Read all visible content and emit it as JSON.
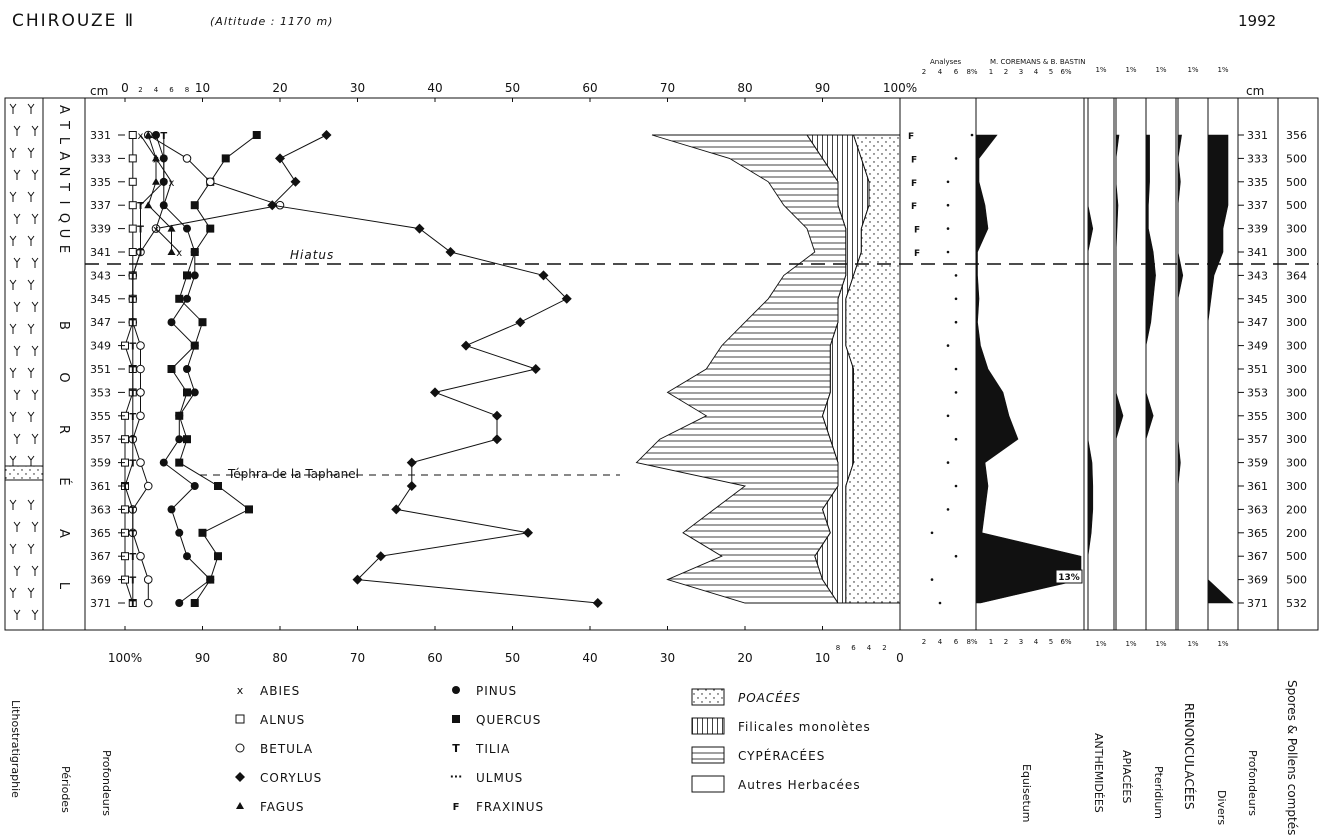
{
  "header": {
    "site": "CHIROUZE Ⅱ",
    "altitude": "(Altitude : 1170 m)",
    "year": "1992",
    "analyses_label": "Analyses",
    "analysts": "M. COREMANS & B. BASTIN"
  },
  "depth_unit": "cm",
  "hiatus_label": "Hiatus",
  "tephra_label": "Téphra de la Taphanel",
  "periods": [
    {
      "name": "ATLANTIQUE",
      "letters": [
        "A",
        "T",
        "L",
        "A",
        "N",
        "T",
        "I",
        "Q",
        "U",
        "E"
      ]
    },
    {
      "name": "BORÉAL",
      "letters": [
        "B",
        "O",
        "R",
        "É",
        "A",
        "L"
      ]
    }
  ],
  "top_axis_ticks": [
    "0",
    "10",
    "20",
    "30",
    "40",
    "50",
    "60",
    "70",
    "80",
    "90",
    "100%"
  ],
  "top_axis_small_ticks": [
    "2",
    "4",
    "6",
    "8"
  ],
  "bottom_axis_ticks": [
    "100%",
    "90",
    "80",
    "70",
    "60",
    "50",
    "40",
    "30",
    "20",
    "10",
    "0"
  ],
  "bottom_axis_small_ticks": [
    "8",
    "6",
    "4",
    "2"
  ],
  "ulmus_axis_ticks": [
    "2",
    "4",
    "6",
    "8%"
  ],
  "equisetum_axis_ticks": [
    "1",
    "2",
    "3",
    "4",
    "5",
    "6%"
  ],
  "one_percent": "1%",
  "equisetum_max_label": "13%",
  "legend": {
    "trees": [
      {
        "symbol": "x",
        "name": "ABIES"
      },
      {
        "symbol": "□",
        "name": "ALNUS"
      },
      {
        "symbol": "○",
        "name": "BETULA"
      },
      {
        "symbol": "◆",
        "name": "CORYLUS"
      },
      {
        "symbol": "▲",
        "name": "FAGUS"
      },
      {
        "symbol": "●",
        "name": "PINUS"
      },
      {
        "symbol": "■",
        "name": "QUERCUS"
      },
      {
        "symbol": "T",
        "name": "TILIA"
      },
      {
        "symbol": "···",
        "name": "ULMUS"
      },
      {
        "symbol": "F",
        "name": "FRAXINUS"
      }
    ],
    "herbs": [
      {
        "pattern": "dots",
        "name": "POACÉES"
      },
      {
        "pattern": "vertical",
        "name": "Filicales monolètes"
      },
      {
        "pattern": "horizontal",
        "name": "CYPÉRACÉES"
      },
      {
        "pattern": "blank",
        "name": "Autres Herbacées"
      }
    ]
  },
  "bottom_labels": {
    "lithostratigraphie": "Lithostratigraphie",
    "periodes": "Périodes",
    "profondeurs": "Profondeurs",
    "equisetum": "Equisetum",
    "anthemidees": "ANTHEMIDÉES",
    "apiacees": "APIACÉES",
    "pteridium": "Pteridium",
    "renonculacees": "RENONCULACÉES",
    "divers": "Divers",
    "profondeurs2": "Profondeurs",
    "spores": "Spores & Pollens comptés"
  },
  "chart_data": {
    "type": "line",
    "x_unit": "% of pollen sum",
    "depths": [
      "331",
      "333",
      "335",
      "337",
      "339",
      "341",
      "343",
      "345",
      "347",
      "349",
      "351",
      "353",
      "355",
      "357",
      "359",
      "361",
      "363",
      "365",
      "367",
      "369",
      "371"
    ],
    "counts": [
      "356",
      "500",
      "500",
      "500",
      "300",
      "300",
      "364",
      "300",
      "300",
      "300",
      "300",
      "300",
      "300",
      "300",
      "300",
      "300",
      "200",
      "200",
      "500",
      "500",
      "532"
    ],
    "series": [
      {
        "name": "PINUS",
        "values": [
          4,
          5,
          5,
          5,
          8,
          9,
          9,
          8,
          6,
          9,
          8,
          9,
          7,
          7,
          5,
          9,
          6,
          7,
          8,
          11,
          7
        ]
      },
      {
        "name": "QUERCUS",
        "values": [
          17,
          13,
          11,
          9,
          11,
          9,
          8,
          7,
          10,
          9,
          6,
          8,
          7,
          8,
          7,
          12,
          16,
          10,
          12,
          11,
          9
        ]
      },
      {
        "name": "BETULA",
        "values": [
          3,
          8,
          11,
          20,
          4,
          2,
          1,
          1,
          1,
          2,
          2,
          2,
          2,
          1,
          2,
          3,
          1,
          1,
          2,
          3,
          3
        ]
      },
      {
        "name": "CORYLUS",
        "values": [
          26,
          20,
          22,
          19,
          38,
          42,
          54,
          57,
          51,
          44,
          53,
          40,
          48,
          48,
          37,
          37,
          35,
          52,
          33,
          30,
          61
        ]
      },
      {
        "name": "ALNUS",
        "values": [
          1,
          1,
          1,
          1,
          1,
          1,
          1,
          1,
          1,
          0,
          1,
          1,
          0,
          0,
          0,
          0,
          0,
          0,
          0,
          0,
          1
        ]
      },
      {
        "name": "TILIA",
        "values": [
          5,
          5,
          5,
          2,
          2,
          2,
          1,
          1,
          1,
          1,
          1,
          1,
          1,
          1,
          1,
          0,
          1,
          1,
          1,
          1,
          1
        ]
      },
      {
        "name": "ABIES",
        "values": [
          2,
          4,
          6,
          5,
          4,
          7,
          0,
          0,
          0,
          0,
          0,
          0,
          0,
          0,
          0,
          0,
          0,
          0,
          0,
          0,
          0
        ]
      },
      {
        "name": "FAGUS",
        "values": [
          3,
          4,
          4,
          3,
          6,
          6,
          0,
          0,
          0,
          0,
          0,
          0,
          0,
          0,
          0,
          0,
          0,
          0,
          0,
          0,
          0
        ]
      },
      {
        "name": "ULMUS",
        "values": [
          8,
          6,
          5,
          5,
          5,
          5,
          6,
          6,
          6,
          5,
          6,
          6,
          5,
          6,
          5,
          6,
          5,
          3,
          6,
          3,
          4
        ]
      },
      {
        "name": "FRAXINUS",
        "values": [
          0,
          0.5,
          0.5,
          0.5,
          1,
          1,
          0,
          0,
          0,
          0,
          0,
          0,
          0,
          0,
          0,
          0,
          0,
          0,
          0,
          0,
          0
        ]
      }
    ],
    "cumulative": {
      "name": "Autres Herbacées / CYPÉRACÉES / Filicales monolètes / POACÉES boundaries (cumulative %)",
      "herbs_start": [
        68,
        78,
        83,
        85,
        88,
        89,
        85,
        83,
        80,
        77,
        75,
        70,
        75,
        69,
        66,
        80,
        76,
        72,
        77,
        70,
        80
      ],
      "cyperacees_end": [
        88,
        90,
        92,
        92,
        93,
        93,
        93,
        92,
        92,
        91,
        91,
        91,
        90,
        91,
        92,
        92,
        90,
        91,
        89,
        90,
        92
      ],
      "filicales_end": [
        94,
        95,
        96,
        96,
        95,
        95,
        94,
        93,
        93,
        93,
        94,
        94,
        94,
        94,
        94,
        93,
        93,
        93,
        93,
        93,
        93
      ]
    },
    "equisetum": [
      1.4,
      0.2,
      0.2,
      0.6,
      0.8,
      0.1,
      0.1,
      0.2,
      0.1,
      0.3,
      0.8,
      1.8,
      2.2,
      2.8,
      0.6,
      0.8,
      0.6,
      0.4,
      13,
      10,
      0.3
    ],
    "anthemidees": [
      0,
      0,
      0,
      0,
      0.6,
      0,
      0,
      0,
      0,
      0,
      0,
      0,
      0,
      0,
      0.5,
      0.6,
      0.6,
      0.4,
      0,
      0,
      0
    ],
    "apiacees": [
      0.3,
      0,
      0,
      0.2,
      0.1,
      0,
      0,
      0,
      0,
      0,
      0,
      0,
      0.7,
      0,
      0,
      0,
      0,
      0,
      0,
      0,
      0
    ],
    "pteridium": [
      0.3,
      0.3,
      0.3,
      0.2,
      0.2,
      0.6,
      0.8,
      0.6,
      0.4,
      0,
      0,
      0,
      0.6,
      0,
      0,
      0,
      0,
      0,
      0,
      0,
      0
    ],
    "renonculacees": [
      0.3,
      0,
      0.2,
      0,
      0,
      0,
      0.4,
      0,
      0,
      0,
      0,
      0,
      0,
      0,
      0.2,
      0,
      0,
      0,
      0,
      0,
      0
    ],
    "divers": [
      2,
      2,
      2,
      2,
      1.5,
      1.5,
      0.6,
      0.3,
      0,
      0,
      0,
      0,
      0,
      0,
      0,
      0,
      0,
      0,
      0,
      0,
      2.5
    ],
    "xlim": [
      0,
      100
    ]
  }
}
